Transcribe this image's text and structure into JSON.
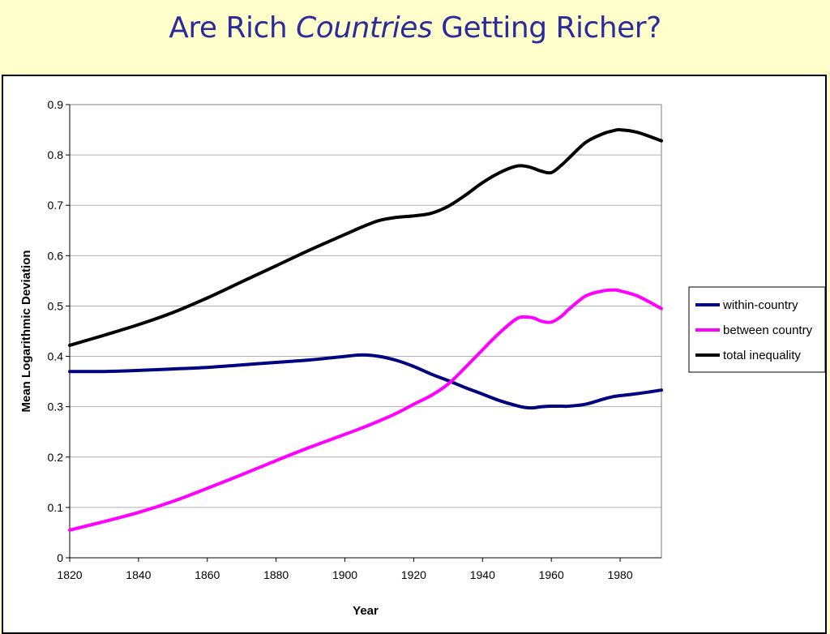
{
  "slide": {
    "title_part1": "Are Rich ",
    "title_italic": "Countries",
    "title_part2": " Getting Richer?"
  },
  "colors": {
    "background": "#ffffcc",
    "title": "#2b2b9c"
  },
  "chart_data": {
    "type": "line",
    "title": "",
    "xlabel": "Year",
    "ylabel": "Mean Logarithmic Deviation",
    "xlim": [
      1820,
      1992
    ],
    "ylim": [
      0,
      0.9
    ],
    "xticks": [
      1820,
      1840,
      1860,
      1880,
      1900,
      1920,
      1940,
      1960,
      1980
    ],
    "yticks": [
      0,
      0.1,
      0.2,
      0.3,
      0.4,
      0.5,
      0.6,
      0.7,
      0.8,
      0.9
    ],
    "ytick_labels": [
      "0",
      "0.1",
      "0.2",
      "0.3",
      "0.4",
      "0.5",
      "0.6",
      "0.7",
      "0.8",
      "0.9"
    ],
    "grid": "horizontal",
    "legend_position": "right",
    "x": [
      1820,
      1830,
      1840,
      1850,
      1860,
      1870,
      1880,
      1890,
      1900,
      1905,
      1910,
      1915,
      1920,
      1925,
      1930,
      1935,
      1940,
      1945,
      1950,
      1953,
      1955,
      1957,
      1960,
      1963,
      1965,
      1970,
      1975,
      1978,
      1980,
      1985,
      1992
    ],
    "series": [
      {
        "name": "within-country",
        "color": "#000080",
        "values": [
          0.37,
          0.37,
          0.372,
          0.375,
          0.378,
          0.383,
          0.388,
          0.393,
          0.4,
          0.403,
          0.4,
          0.392,
          0.38,
          0.365,
          0.352,
          0.338,
          0.325,
          0.312,
          0.302,
          0.298,
          0.298,
          0.3,
          0.301,
          0.301,
          0.301,
          0.305,
          0.315,
          0.32,
          0.322,
          0.326,
          0.333
        ]
      },
      {
        "name": "between country",
        "color": "#ff00ff",
        "values": [
          0.055,
          0.072,
          0.09,
          0.112,
          0.138,
          0.165,
          0.193,
          0.22,
          0.245,
          0.258,
          0.272,
          0.287,
          0.305,
          0.322,
          0.345,
          0.378,
          0.413,
          0.447,
          0.475,
          0.478,
          0.476,
          0.47,
          0.468,
          0.48,
          0.493,
          0.52,
          0.53,
          0.532,
          0.53,
          0.52,
          0.495
        ]
      },
      {
        "name": "total inequality",
        "color": "#000000",
        "values": [
          0.422,
          0.442,
          0.463,
          0.487,
          0.516,
          0.548,
          0.58,
          0.612,
          0.642,
          0.657,
          0.67,
          0.676,
          0.679,
          0.684,
          0.698,
          0.72,
          0.745,
          0.765,
          0.778,
          0.777,
          0.773,
          0.768,
          0.765,
          0.78,
          0.793,
          0.825,
          0.842,
          0.848,
          0.85,
          0.845,
          0.828
        ]
      }
    ]
  }
}
